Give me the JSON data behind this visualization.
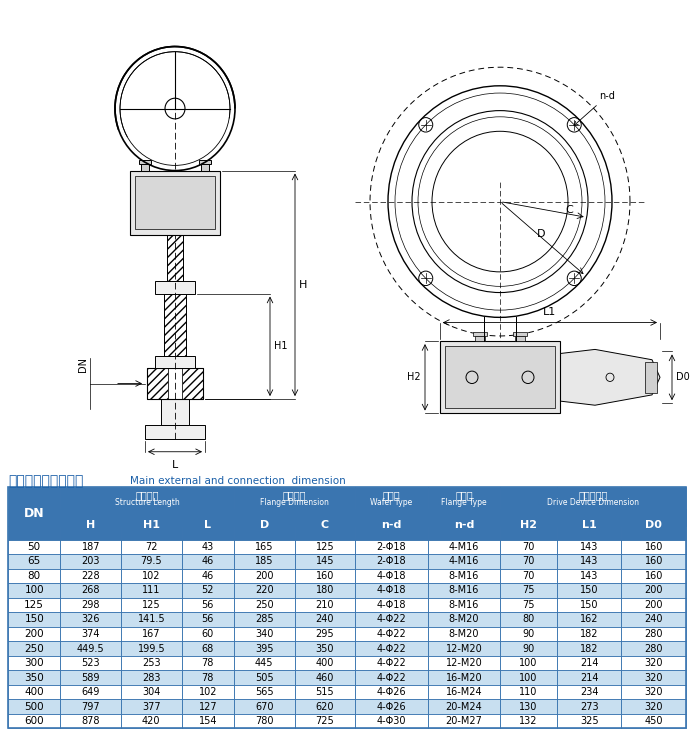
{
  "title_cn": "主要外形和连接尺寸",
  "title_en": "Main external and connection  dimension",
  "header_color": "#3a75b0",
  "text_color_h": "#ffffff",
  "row_odd_bg": "#ffffff",
  "row_even_bg": "#c8dff0",
  "border_color": "#3a75b0",
  "rows": [
    [
      "50",
      "187",
      "72",
      "43",
      "165",
      "125",
      "2-Φ18",
      "4-M16",
      "70",
      "143",
      "160"
    ],
    [
      "65",
      "203",
      "79.5",
      "46",
      "185",
      "145",
      "2-Φ18",
      "4-M16",
      "70",
      "143",
      "160"
    ],
    [
      "80",
      "228",
      "102",
      "46",
      "200",
      "160",
      "4-Φ18",
      "8-M16",
      "70",
      "143",
      "160"
    ],
    [
      "100",
      "268",
      "111",
      "52",
      "220",
      "180",
      "4-Φ18",
      "8-M16",
      "75",
      "150",
      "200"
    ],
    [
      "125",
      "298",
      "125",
      "56",
      "250",
      "210",
      "4-Φ18",
      "8-M16",
      "75",
      "150",
      "200"
    ],
    [
      "150",
      "326",
      "141.5",
      "56",
      "285",
      "240",
      "4-Φ22",
      "8-M20",
      "80",
      "162",
      "240"
    ],
    [
      "200",
      "374",
      "167",
      "60",
      "340",
      "295",
      "4-Φ22",
      "8-M20",
      "90",
      "182",
      "280"
    ],
    [
      "250",
      "449.5",
      "199.5",
      "68",
      "395",
      "350",
      "4-Φ22",
      "12-M20",
      "90",
      "182",
      "280"
    ],
    [
      "300",
      "523",
      "253",
      "78",
      "445",
      "400",
      "4-Φ22",
      "12-M20",
      "100",
      "214",
      "320"
    ],
    [
      "350",
      "589",
      "283",
      "78",
      "505",
      "460",
      "4-Φ22",
      "16-M20",
      "100",
      "214",
      "320"
    ],
    [
      "400",
      "649",
      "304",
      "102",
      "565",
      "515",
      "4-Φ26",
      "16-M24",
      "110",
      "234",
      "320"
    ],
    [
      "500",
      "797",
      "377",
      "127",
      "670",
      "620",
      "4-Φ26",
      "20-M24",
      "130",
      "273",
      "320"
    ],
    [
      "600",
      "878",
      "420",
      "154",
      "780",
      "725",
      "4-Φ30",
      "20-M27",
      "132",
      "325",
      "450"
    ]
  ]
}
